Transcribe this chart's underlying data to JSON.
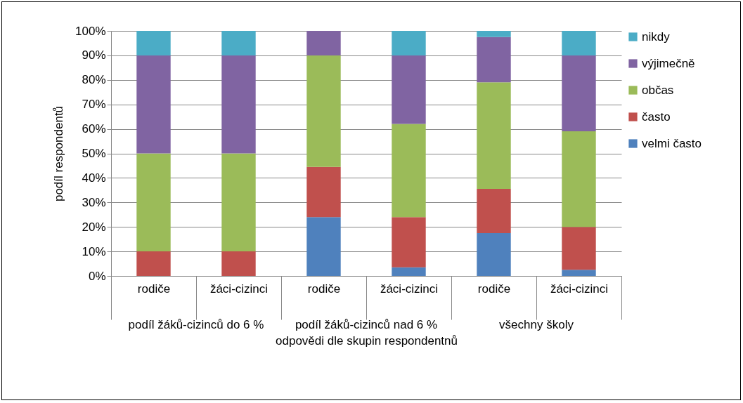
{
  "chart_data": {
    "type": "bar",
    "stacked": true,
    "ylabel": "podíl respondentů",
    "xlabel": "odpovědi dle skupin respondentnů",
    "categories": [
      "rodiče",
      "žáci-cizinci",
      "rodiče",
      "žáci-cizinci",
      "rodiče",
      "žáci-cizinci"
    ],
    "annotations": [
      "podíl žáků-cizinců do 6 %",
      "podíl žáků-cizinců nad 6 %",
      "všechny školy"
    ],
    "series": [
      {
        "name": "velmi často",
        "color": "#4f81bd",
        "values": [
          0,
          0,
          24,
          3.5,
          17.5,
          2.5
        ]
      },
      {
        "name": "často",
        "color": "#c0504d",
        "values": [
          10,
          10,
          20.5,
          20.5,
          18,
          17.5
        ]
      },
      {
        "name": "občas",
        "color": "#9bbb59",
        "values": [
          40,
          40,
          45.5,
          38,
          43.5,
          39
        ]
      },
      {
        "name": "výjimečně",
        "color": "#8064a2",
        "values": [
          40,
          40,
          10,
          28,
          18.5,
          31
        ]
      },
      {
        "name": "nikdy",
        "color": "#4bacc6",
        "values": [
          10,
          10,
          0,
          10,
          2.5,
          10
        ]
      }
    ],
    "ylim": [
      0,
      100
    ],
    "yticks": [
      {
        "value": 0,
        "label": "0%"
      },
      {
        "value": 10,
        "label": "10%"
      },
      {
        "value": 20,
        "label": "20%"
      },
      {
        "value": 30,
        "label": "30%"
      },
      {
        "value": 40,
        "label": "40%"
      },
      {
        "value": 50,
        "label": "50%"
      },
      {
        "value": 60,
        "label": "60%"
      },
      {
        "value": 70,
        "label": "70%"
      },
      {
        "value": 80,
        "label": "80%"
      },
      {
        "value": 90,
        "label": "90%"
      },
      {
        "value": 100,
        "label": "100%"
      }
    ],
    "grid": true,
    "legend": "right"
  }
}
